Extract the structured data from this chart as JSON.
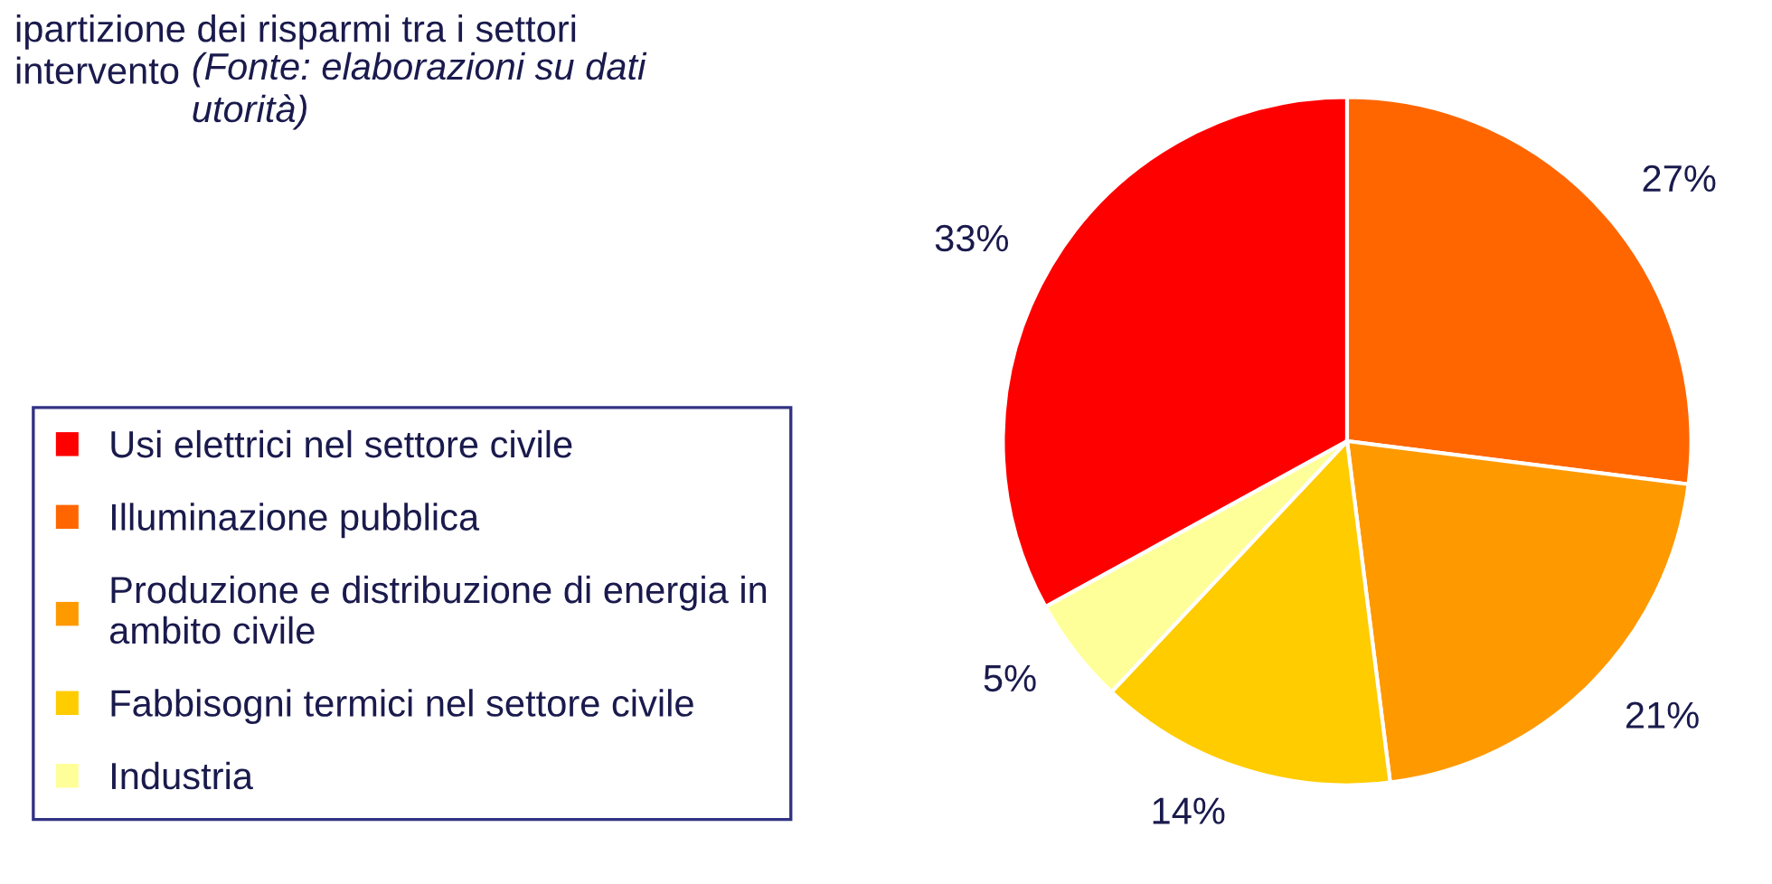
{
  "chart_data": {
    "type": "pie",
    "title": "ipartizione dei risparmi tra i settori\nintervento",
    "annotations": [
      "(Fonte: elaborazioni su dati\nutorità)"
    ],
    "categories": [
      "Usi elettrici nel settore civile",
      "Illuminazione pubblica",
      "Produzione e distribuzione di energia in\nambito civile",
      "Fabbisogni termici nel settore civile",
      "Industria"
    ],
    "values": [
      33,
      27,
      21,
      14,
      5
    ],
    "colors": [
      "#ff0000",
      "#ff6600",
      "#ff9900",
      "#ffcc00",
      "#ffff99"
    ],
    "value_labels": [
      "33%",
      "27%",
      "21%",
      "14%",
      "5%"
    ],
    "legend": "left"
  }
}
